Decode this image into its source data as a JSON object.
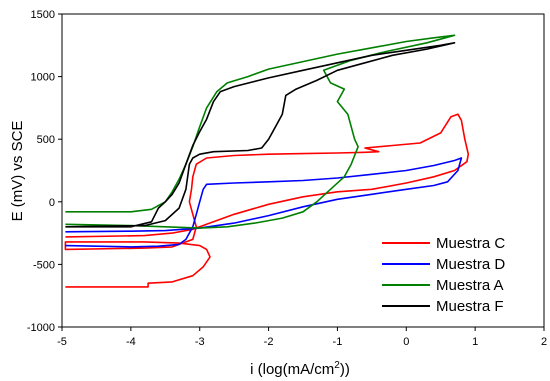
{
  "chart_data": {
    "type": "line",
    "title": "",
    "xlabel_main": "i (log(mA/cm",
    "xlabel_sup": "2",
    "xlabel_end": "))",
    "ylabel": "E (mV) vs SCE",
    "xlim": [
      -5,
      2
    ],
    "ylim": [
      -1000,
      1500
    ],
    "xticks": [
      "-5",
      "-4",
      "-3",
      "-2",
      "-1",
      "0",
      "1",
      "2"
    ],
    "yticks": [
      "1500",
      "1000",
      "500",
      "0",
      "-500",
      "-1000"
    ],
    "grid": false,
    "legend_position": "bottom-right",
    "series": [
      {
        "name": "Muestra C",
        "color": "#ff0000",
        "points": [
          [
            -4.95,
            -680
          ],
          [
            -3.75,
            -680
          ],
          [
            -3.75,
            -650
          ],
          [
            -3.4,
            -640
          ],
          [
            -3.1,
            -590
          ],
          [
            -2.95,
            -520
          ],
          [
            -2.85,
            -440
          ],
          [
            -2.9,
            -380
          ],
          [
            -3.0,
            -350
          ],
          [
            -3.3,
            -330
          ],
          [
            -3.8,
            -320
          ],
          [
            -4.95,
            -320
          ],
          [
            -4.95,
            -380
          ],
          [
            -3.8,
            -370
          ],
          [
            -3.4,
            -360
          ],
          [
            -3.1,
            -300
          ],
          [
            -3.05,
            -200
          ],
          [
            -3.1,
            -100
          ],
          [
            -3.15,
            0
          ],
          [
            -3.12,
            100
          ],
          [
            -3.1,
            200
          ],
          [
            -3.05,
            300
          ],
          [
            -2.9,
            350
          ],
          [
            -2.5,
            370
          ],
          [
            -2.0,
            380
          ],
          [
            -1.5,
            385
          ],
          [
            -1.0,
            390
          ],
          [
            -0.6,
            395
          ],
          [
            -0.4,
            400
          ],
          [
            -0.6,
            430
          ],
          [
            -0.2,
            450
          ],
          [
            0.2,
            470
          ],
          [
            0.5,
            550
          ],
          [
            0.65,
            680
          ],
          [
            0.75,
            700
          ],
          [
            0.8,
            650
          ],
          [
            0.85,
            500
          ],
          [
            0.9,
            380
          ],
          [
            0.88,
            320
          ],
          [
            0.7,
            250
          ],
          [
            0.4,
            200
          ],
          [
            0.0,
            150
          ],
          [
            -0.5,
            100
          ],
          [
            -1.0,
            80
          ],
          [
            -1.5,
            40
          ],
          [
            -2.0,
            -20
          ],
          [
            -2.5,
            -100
          ],
          [
            -2.9,
            -180
          ],
          [
            -3.1,
            -220
          ],
          [
            -3.4,
            -250
          ],
          [
            -3.8,
            -270
          ],
          [
            -4.95,
            -280
          ]
        ]
      },
      {
        "name": "Muestra D",
        "color": "#0000ff",
        "points": [
          [
            -4.95,
            -350
          ],
          [
            -4.0,
            -360
          ],
          [
            -3.6,
            -355
          ],
          [
            -3.3,
            -340
          ],
          [
            -3.2,
            -300
          ],
          [
            -3.1,
            -200
          ],
          [
            -3.05,
            -100
          ],
          [
            -3.0,
            0
          ],
          [
            -2.95,
            100
          ],
          [
            -2.9,
            140
          ],
          [
            -2.5,
            150
          ],
          [
            -2.0,
            160
          ],
          [
            -1.5,
            170
          ],
          [
            -1.0,
            190
          ],
          [
            -0.5,
            220
          ],
          [
            0.0,
            250
          ],
          [
            0.4,
            290
          ],
          [
            0.7,
            330
          ],
          [
            0.8,
            350
          ],
          [
            0.75,
            250
          ],
          [
            0.6,
            160
          ],
          [
            0.4,
            130
          ],
          [
            0.0,
            100
          ],
          [
            -0.5,
            60
          ],
          [
            -1.0,
            20
          ],
          [
            -1.5,
            -40
          ],
          [
            -2.0,
            -110
          ],
          [
            -2.5,
            -170
          ],
          [
            -3.0,
            -210
          ],
          [
            -3.5,
            -230
          ],
          [
            -4.0,
            -235
          ],
          [
            -4.95,
            -240
          ]
        ]
      },
      {
        "name": "Muestra A",
        "color": "#008000",
        "points": [
          [
            -4.95,
            -80
          ],
          [
            -4.0,
            -80
          ],
          [
            -3.7,
            -60
          ],
          [
            -3.5,
            0
          ],
          [
            -3.4,
            80
          ],
          [
            -3.3,
            180
          ],
          [
            -3.2,
            300
          ],
          [
            -3.1,
            440
          ],
          [
            -3.0,
            600
          ],
          [
            -2.9,
            750
          ],
          [
            -2.75,
            880
          ],
          [
            -2.6,
            950
          ],
          [
            -2.3,
            1000
          ],
          [
            -2.0,
            1060
          ],
          [
            -1.5,
            1120
          ],
          [
            -1.0,
            1180
          ],
          [
            -0.5,
            1230
          ],
          [
            0.0,
            1280
          ],
          [
            0.4,
            1310
          ],
          [
            0.7,
            1330
          ],
          [
            0.3,
            1270
          ],
          [
            -0.3,
            1200
          ],
          [
            -0.8,
            1130
          ],
          [
            -1.2,
            1050
          ],
          [
            -1.1,
            950
          ],
          [
            -0.9,
            900
          ],
          [
            -1.0,
            800
          ],
          [
            -0.85,
            700
          ],
          [
            -0.8,
            600
          ],
          [
            -0.75,
            500
          ],
          [
            -0.7,
            440
          ],
          [
            -0.8,
            300
          ],
          [
            -0.9,
            200
          ],
          [
            -1.1,
            100
          ],
          [
            -1.3,
            0
          ],
          [
            -1.5,
            -80
          ],
          [
            -1.8,
            -130
          ],
          [
            -2.2,
            -170
          ],
          [
            -2.6,
            -200
          ],
          [
            -3.0,
            -210
          ],
          [
            -3.5,
            -200
          ],
          [
            -4.0,
            -190
          ],
          [
            -4.95,
            -180
          ]
        ]
      },
      {
        "name": "Muestra F",
        "color": "#000000",
        "points": [
          [
            -4.95,
            -200
          ],
          [
            -4.0,
            -200
          ],
          [
            -3.7,
            -160
          ],
          [
            -3.6,
            -50
          ],
          [
            -3.5,
            0
          ],
          [
            -3.4,
            60
          ],
          [
            -3.3,
            150
          ],
          [
            -3.2,
            300
          ],
          [
            -3.1,
            450
          ],
          [
            -3.0,
            560
          ],
          [
            -2.9,
            660
          ],
          [
            -2.8,
            800
          ],
          [
            -2.7,
            880
          ],
          [
            -2.5,
            920
          ],
          [
            -2.0,
            990
          ],
          [
            -1.5,
            1050
          ],
          [
            -1.0,
            1110
          ],
          [
            -0.5,
            1170
          ],
          [
            0.0,
            1210
          ],
          [
            0.5,
            1250
          ],
          [
            0.7,
            1270
          ],
          [
            0.3,
            1220
          ],
          [
            -0.2,
            1170
          ],
          [
            -0.6,
            1110
          ],
          [
            -1.0,
            1050
          ],
          [
            -1.3,
            970
          ],
          [
            -1.6,
            900
          ],
          [
            -1.75,
            850
          ],
          [
            -1.8,
            700
          ],
          [
            -1.9,
            600
          ],
          [
            -2.0,
            500
          ],
          [
            -2.1,
            430
          ],
          [
            -2.3,
            410
          ],
          [
            -2.8,
            400
          ],
          [
            -3.0,
            380
          ],
          [
            -3.1,
            350
          ],
          [
            -3.15,
            300
          ],
          [
            -3.2,
            100
          ],
          [
            -3.3,
            -50
          ],
          [
            -3.5,
            -150
          ],
          [
            -3.8,
            -190
          ],
          [
            -4.95,
            -200
          ]
        ]
      }
    ]
  }
}
